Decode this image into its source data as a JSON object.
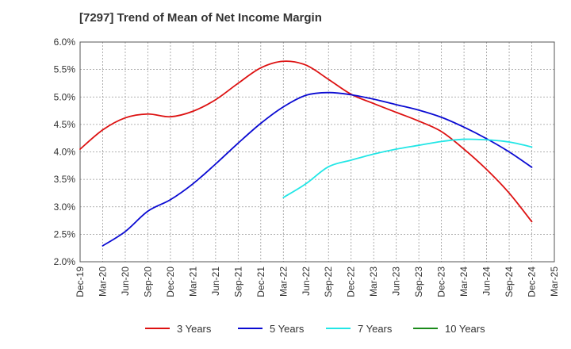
{
  "chart_data": {
    "type": "line",
    "title": "[7297]  Trend of Mean of Net Income Margin",
    "xlabel": "",
    "ylabel": "",
    "x_ticks": [
      "Dec-19",
      "Mar-20",
      "Jun-20",
      "Sep-20",
      "Dec-20",
      "Mar-21",
      "Jun-21",
      "Sep-21",
      "Dec-21",
      "Mar-22",
      "Jun-22",
      "Sep-22",
      "Dec-22",
      "Mar-23",
      "Jun-23",
      "Sep-23",
      "Dec-23",
      "Mar-24",
      "Jun-24",
      "Sep-24",
      "Dec-24",
      "Mar-25"
    ],
    "y_ticks": [
      "2.0%",
      "2.5%",
      "3.0%",
      "3.5%",
      "4.0%",
      "4.5%",
      "5.0%",
      "5.5%",
      "6.0%"
    ],
    "ylim": [
      2.0,
      6.0
    ],
    "grid": true,
    "legend_position": "bottom",
    "series": [
      {
        "name": "3 Years",
        "color": "#dd1111",
        "x": [
          "Dec-19",
          "Mar-20",
          "Jun-20",
          "Sep-20",
          "Dec-20",
          "Mar-21",
          "Jun-21",
          "Sep-21",
          "Dec-21",
          "Mar-22",
          "Jun-22",
          "Sep-22",
          "Dec-22",
          "Mar-23",
          "Jun-23",
          "Sep-23",
          "Dec-23",
          "Mar-24",
          "Jun-24",
          "Sep-24",
          "Dec-24"
        ],
        "values": [
          4.05,
          4.4,
          4.62,
          4.69,
          4.64,
          4.74,
          4.95,
          5.25,
          5.53,
          5.65,
          5.58,
          5.32,
          5.05,
          4.88,
          4.72,
          4.56,
          4.37,
          4.05,
          3.68,
          3.25,
          2.73
        ]
      },
      {
        "name": "5 Years",
        "color": "#0a0ad2",
        "x": [
          "Mar-20",
          "Jun-20",
          "Sep-20",
          "Dec-20",
          "Mar-21",
          "Jun-21",
          "Sep-21",
          "Dec-21",
          "Mar-22",
          "Jun-22",
          "Sep-22",
          "Dec-22",
          "Mar-23",
          "Jun-23",
          "Sep-23",
          "Dec-23",
          "Mar-24",
          "Jun-24",
          "Sep-24",
          "Dec-24"
        ],
        "values": [
          2.29,
          2.55,
          2.92,
          3.13,
          3.42,
          3.78,
          4.16,
          4.52,
          4.82,
          5.03,
          5.08,
          5.04,
          4.96,
          4.86,
          4.76,
          4.63,
          4.45,
          4.24,
          4.0,
          3.72
        ]
      },
      {
        "name": "7 Years",
        "color": "#22e6e6",
        "x": [
          "Mar-22",
          "Jun-22",
          "Sep-22",
          "Dec-22",
          "Mar-23",
          "Jun-23",
          "Sep-23",
          "Dec-23",
          "Mar-24",
          "Jun-24",
          "Sep-24",
          "Dec-24"
        ],
        "values": [
          3.17,
          3.42,
          3.73,
          3.85,
          3.96,
          4.05,
          4.12,
          4.19,
          4.23,
          4.22,
          4.18,
          4.09
        ]
      },
      {
        "name": "10 Years",
        "color": "#1a8a1a",
        "x": [],
        "values": []
      }
    ]
  }
}
